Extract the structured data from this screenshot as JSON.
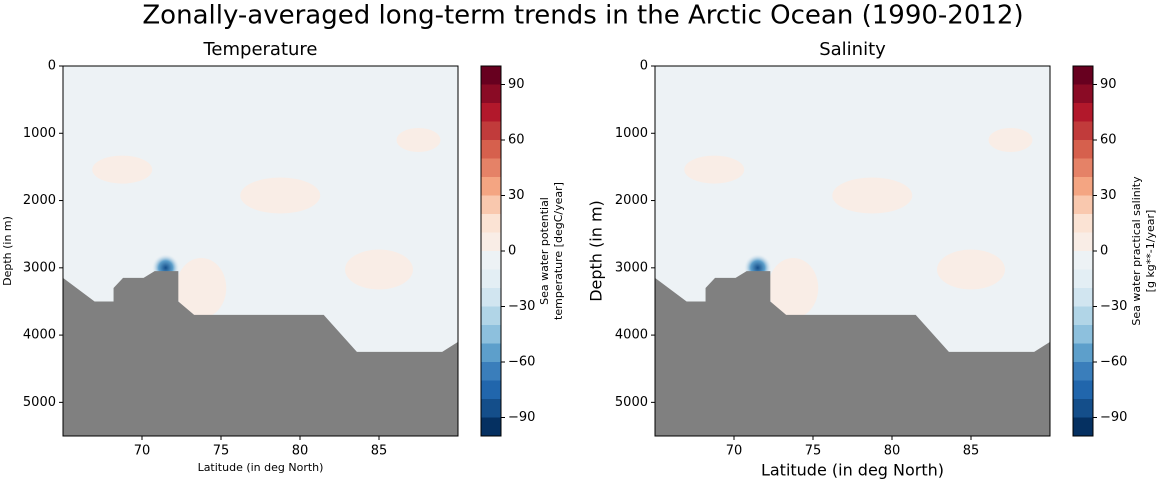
{
  "title": "Zonally-averaged long-term trends in the Arctic Ocean (1990-2012)",
  "chart_data": [
    {
      "type": "contour",
      "title": "Temperature",
      "x_label": "Latitude (in deg North)",
      "y_label": "Depth (in m)",
      "xlim": [
        65,
        90
      ],
      "xticks": [
        70,
        75,
        80,
        85
      ],
      "ylim": [
        5500,
        0
      ],
      "yticks": [
        0,
        1000,
        2000,
        3000,
        4000,
        5000
      ],
      "background_color": "#edf2f5",
      "land_color": "#808080",
      "bathymetry": {
        "lat": [
          65,
          67,
          68.2,
          68.2,
          68.8,
          70.1,
          70.8,
          72.3,
          72.3,
          73.3,
          81.5,
          83.6,
          89,
          90
        ],
        "depth": [
          3150,
          3500,
          3500,
          3300,
          3150,
          3150,
          3050,
          3050,
          3500,
          3700,
          3700,
          4250,
          4250,
          4100
        ]
      },
      "colorbar": {
        "label": [
          "Sea water potential",
          "temperature [degC/year]"
        ],
        "lim": [
          -100,
          100
        ],
        "ticks": [
          {
            "value": -90,
            "label": "−90"
          },
          {
            "value": -60,
            "label": "−60"
          },
          {
            "value": -30,
            "label": "−30"
          },
          0,
          30,
          60,
          90
        ],
        "levels": [
          -100,
          -90,
          -80,
          -70,
          -60,
          -50,
          -40,
          -30,
          -20,
          -10,
          0,
          10,
          20,
          30,
          40,
          50,
          60,
          70,
          80,
          90,
          100
        ],
        "colors": [
          "#053061",
          "#144e8a",
          "#2166ac",
          "#3a7ebb",
          "#5d9fcb",
          "#8dc0dd",
          "#b1d5e7",
          "#d1e5f0",
          "#e3eef4",
          "#edf2f5",
          "#f9ede6",
          "#fbe3d4",
          "#f9c8ae",
          "#f4a582",
          "#e58267",
          "#d6604d",
          "#c13b3b",
          "#b2182b",
          "#8a0b25",
          "#67001f"
        ]
      }
    },
    {
      "type": "contour",
      "title": "Salinity",
      "x_label": "Latitude (in deg North)",
      "y_label": "Depth (in m)",
      "xlim": [
        65,
        90
      ],
      "xticks": [
        70,
        75,
        80,
        85
      ],
      "ylim": [
        5500,
        0
      ],
      "yticks": [
        0,
        1000,
        2000,
        3000,
        4000,
        5000
      ],
      "background_color": "#edf2f5",
      "land_color": "#808080",
      "bathymetry": {
        "lat": [
          65,
          67,
          68.2,
          68.2,
          68.8,
          70.1,
          70.8,
          72.3,
          72.3,
          73.3,
          81.5,
          83.6,
          89,
          90
        ],
        "depth": [
          3150,
          3500,
          3500,
          3300,
          3150,
          3150,
          3050,
          3050,
          3500,
          3700,
          3700,
          4250,
          4250,
          4100
        ]
      },
      "colorbar": {
        "label": [
          "Sea water practical salinity",
          "[g kg**-1/year]"
        ],
        "lim": [
          -100,
          100
        ],
        "ticks": [
          {
            "value": -90,
            "label": "−90"
          },
          {
            "value": -60,
            "label": "−60"
          },
          {
            "value": -30,
            "label": "−30"
          },
          0,
          30,
          60,
          90
        ],
        "levels": [
          -100,
          -90,
          -80,
          -70,
          -60,
          -50,
          -40,
          -30,
          -20,
          -10,
          0,
          10,
          20,
          30,
          40,
          50,
          60,
          70,
          80,
          90,
          100
        ],
        "colors": [
          "#053061",
          "#144e8a",
          "#2166ac",
          "#3a7ebb",
          "#5d9fcb",
          "#8dc0dd",
          "#b1d5e7",
          "#d1e5f0",
          "#e3eef4",
          "#edf2f5",
          "#f9ede6",
          "#fbe3d4",
          "#f9c8ae",
          "#f4a582",
          "#e58267",
          "#d6604d",
          "#c13b3b",
          "#b2182b",
          "#8a0b25",
          "#67001f"
        ]
      }
    }
  ]
}
